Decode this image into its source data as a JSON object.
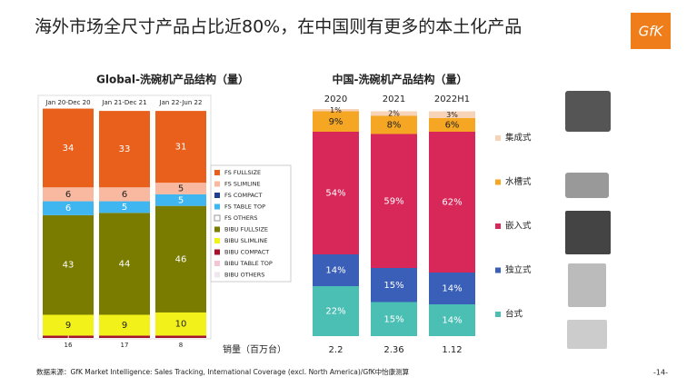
{
  "title": "海外市场全尺寸产品占比近80%，在中国则有更多的本土化产品",
  "logo": "GfK",
  "source": "数据来源：GfK Market Intelligence: Sales Tracking, International Coverage (excl. North America)/GfK中怡康测算",
  "page_number": "-14-",
  "chart_data": [
    {
      "type": "stacked_bar",
      "title": "Global-洗碗机产品结构（量）",
      "categories": [
        "Jan 20-Dec 20",
        "Jan 21-Dec 21",
        "Jan 22-Jun 22"
      ],
      "ylim": [
        0,
        100
      ],
      "series": [
        {
          "name": "FS FULLSIZE",
          "color": "#e8601c",
          "values": [
            34,
            33,
            31
          ]
        },
        {
          "name": "FS SLIMLINE",
          "color": "#f8b9a0",
          "values": [
            6,
            6,
            5
          ]
        },
        {
          "name": "FS COMPACT",
          "color": "#1f3f8f",
          "values": [
            0,
            0,
            0
          ]
        },
        {
          "name": "FS TABLE TOP",
          "color": "#3fb6f0",
          "values": [
            6,
            5,
            5
          ]
        },
        {
          "name": "FS OTHERS",
          "color": "#ffffff",
          "values": [
            0,
            0,
            0
          ]
        },
        {
          "name": "BIBU FULLSIZE",
          "color": "#7a7c00",
          "values": [
            43,
            44,
            46
          ]
        },
        {
          "name": "BIBU SLIMLINE",
          "color": "#f2f21a",
          "values": [
            9,
            9,
            10
          ]
        },
        {
          "name": "BIBU COMPACT",
          "color": "#a5142a",
          "values": [
            1,
            1,
            1
          ],
          "value_labels": [
            "1",
            null,
            null
          ]
        },
        {
          "name": "BIBU TABLE TOP",
          "color": "#f4c6d4",
          "values": [
            0,
            0,
            0
          ]
        },
        {
          "name": "BIBU OTHERS",
          "color": "#f0e6ef",
          "values": [
            0,
            0,
            0
          ]
        }
      ],
      "counts": [
        16,
        17,
        8
      ]
    },
    {
      "type": "stacked_bar",
      "title": "中国-洗碗机产品结构（量）",
      "categories": [
        "2020",
        "2021",
        "2022H1"
      ],
      "ylim": [
        0,
        100
      ],
      "series": [
        {
          "name": "集成式",
          "color": "#f7d3b8",
          "values": [
            1,
            2,
            3
          ],
          "value_labels": [
            "1%",
            "2%",
            "3%"
          ]
        },
        {
          "name": "水槽式",
          "color": "#f5a623",
          "values": [
            9,
            8,
            6
          ],
          "value_labels": [
            "9%",
            "8%",
            "6%"
          ]
        },
        {
          "name": "嵌入式",
          "color": "#d8285a",
          "values": [
            54,
            59,
            62
          ],
          "value_labels": [
            "54%",
            "59%",
            "62%"
          ]
        },
        {
          "name": "独立式",
          "color": "#3a5fb8",
          "values": [
            14,
            15,
            14
          ],
          "value_labels": [
            "14%",
            "15%",
            "14%"
          ]
        },
        {
          "name": "台式",
          "color": "#4cbfb5",
          "values": [
            22,
            15,
            14
          ],
          "value_labels": [
            "22%",
            "15%",
            "14%"
          ]
        }
      ],
      "sales_label": "销量（百万台）",
      "sales": [
        2.2,
        2.36,
        1.12
      ]
    }
  ]
}
